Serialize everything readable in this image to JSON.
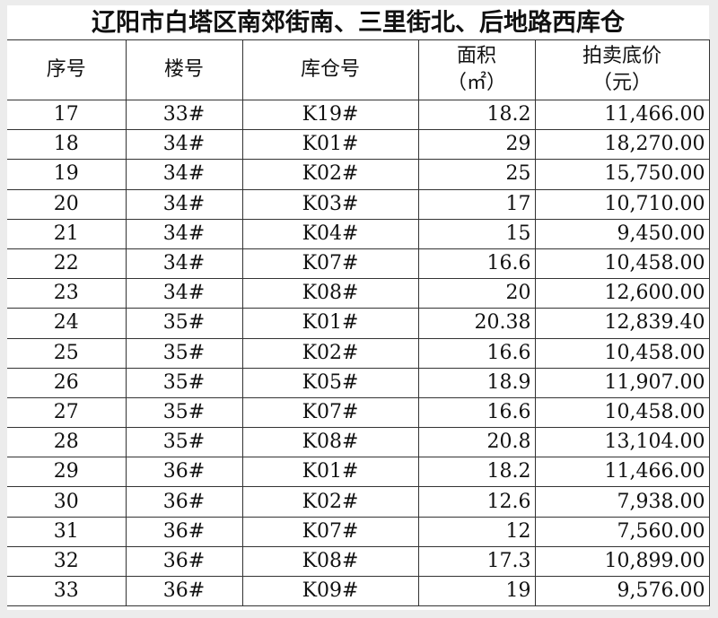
{
  "title": "辽阳市白塔区南郊街南、三里街北、后地路西库仓",
  "columns": {
    "index": "序号",
    "building": "楼号",
    "warehouse": "库仓号",
    "area_line1": "面积",
    "area_line2": "（㎡）",
    "price_line1": "拍卖底价",
    "price_line2": "（元）"
  },
  "rows": [
    {
      "index": "17",
      "building": "33#",
      "warehouse": "K19#",
      "area": "18.2",
      "price": "11,466.00"
    },
    {
      "index": "18",
      "building": "34#",
      "warehouse": "K01#",
      "area": "29",
      "price": "18,270.00"
    },
    {
      "index": "19",
      "building": "34#",
      "warehouse": "K02#",
      "area": "25",
      "price": "15,750.00"
    },
    {
      "index": "20",
      "building": "34#",
      "warehouse": "K03#",
      "area": "17",
      "price": "10,710.00"
    },
    {
      "index": "21",
      "building": "34#",
      "warehouse": "K04#",
      "area": "15",
      "price": "9,450.00"
    },
    {
      "index": "22",
      "building": "34#",
      "warehouse": "K07#",
      "area": "16.6",
      "price": "10,458.00"
    },
    {
      "index": "23",
      "building": "34#",
      "warehouse": "K08#",
      "area": "20",
      "price": "12,600.00"
    },
    {
      "index": "24",
      "building": "35#",
      "warehouse": "K01#",
      "area": "20.38",
      "price": "12,839.40"
    },
    {
      "index": "25",
      "building": "35#",
      "warehouse": "K02#",
      "area": "16.6",
      "price": "10,458.00"
    },
    {
      "index": "26",
      "building": "35#",
      "warehouse": "K05#",
      "area": "18.9",
      "price": "11,907.00"
    },
    {
      "index": "27",
      "building": "35#",
      "warehouse": "K07#",
      "area": "16.6",
      "price": "10,458.00"
    },
    {
      "index": "28",
      "building": "35#",
      "warehouse": "K08#",
      "area": "20.8",
      "price": "13,104.00"
    },
    {
      "index": "29",
      "building": "36#",
      "warehouse": "K01#",
      "area": "18.2",
      "price": "11,466.00"
    },
    {
      "index": "30",
      "building": "36#",
      "warehouse": "K02#",
      "area": "12.6",
      "price": "7,938.00"
    },
    {
      "index": "31",
      "building": "36#",
      "warehouse": "K07#",
      "area": "12",
      "price": "7,560.00"
    },
    {
      "index": "32",
      "building": "36#",
      "warehouse": "K08#",
      "area": "17.3",
      "price": "10,899.00"
    },
    {
      "index": "33",
      "building": "36#",
      "warehouse": "K09#",
      "area": "19",
      "price": "9,576.00"
    }
  ]
}
